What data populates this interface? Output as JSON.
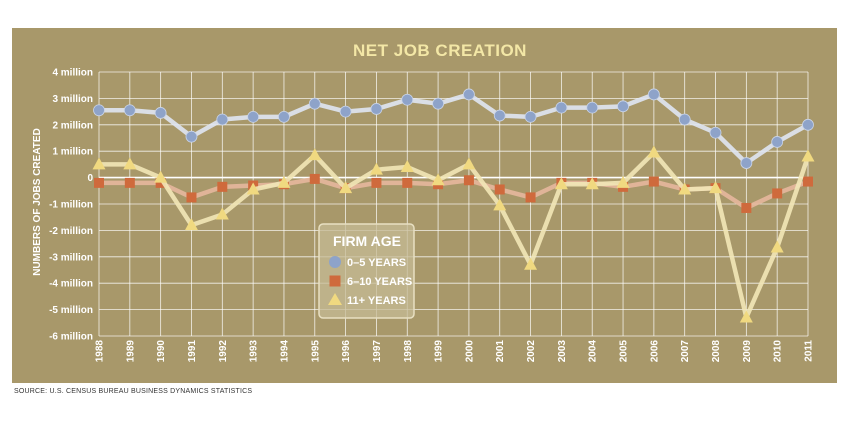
{
  "chart_data": {
    "type": "line",
    "title": "NET JOB CREATION",
    "ylabel": "NUMBERS OF JOBS CREATED",
    "xlabel": "",
    "x": [
      "1988",
      "1989",
      "1990",
      "1991",
      "1992",
      "1993",
      "1994",
      "1995",
      "1996",
      "1997",
      "1998",
      "1999",
      "2000",
      "2001",
      "2002",
      "2003",
      "2004",
      "2005",
      "2006",
      "2007",
      "2008",
      "2009",
      "2010",
      "2011"
    ],
    "y_ticks": [
      {
        "value": 4,
        "label": "4 million"
      },
      {
        "value": 3,
        "label": "3 million"
      },
      {
        "value": 2,
        "label": "2 million"
      },
      {
        "value": 1,
        "label": "1 million"
      },
      {
        "value": 0,
        "label": "0"
      },
      {
        "value": -1,
        "label": "-1 million"
      },
      {
        "value": -2,
        "label": "-2 million"
      },
      {
        "value": -3,
        "label": "-3 million"
      },
      {
        "value": -4,
        "label": "-4 million"
      },
      {
        "value": -5,
        "label": "-5 million"
      },
      {
        "value": -6,
        "label": "-6 million"
      }
    ],
    "ylim": [
      -6,
      4
    ],
    "grid": true,
    "legend_title": "FIRM AGE",
    "legend_position": "center-left",
    "series": [
      {
        "name": "0–5 YEARS",
        "marker": "circle",
        "color": "#8ea3c9",
        "values": [
          2.55,
          2.55,
          2.45,
          1.55,
          2.2,
          2.3,
          2.3,
          2.8,
          2.5,
          2.6,
          2.95,
          2.8,
          3.15,
          2.35,
          2.3,
          2.65,
          2.65,
          2.7,
          3.15,
          2.2,
          1.7,
          0.55,
          1.35,
          2.0
        ]
      },
      {
        "name": "6–10 YEARS",
        "marker": "square",
        "color": "#cf6a3c",
        "values": [
          -0.2,
          -0.2,
          -0.2,
          -0.75,
          -0.35,
          -0.3,
          -0.25,
          -0.05,
          -0.4,
          -0.2,
          -0.2,
          -0.25,
          -0.1,
          -0.45,
          -0.75,
          -0.2,
          -0.2,
          -0.35,
          -0.15,
          -0.45,
          -0.4,
          -1.15,
          -0.6,
          -0.15
        ]
      },
      {
        "name": "11+ YEARS",
        "marker": "triangle",
        "color": "#f0d980",
        "values": [
          0.5,
          0.5,
          0.0,
          -1.8,
          -1.4,
          -0.45,
          -0.2,
          0.85,
          -0.4,
          0.3,
          0.4,
          -0.1,
          0.5,
          -1.05,
          -3.3,
          -0.25,
          -0.25,
          -0.2,
          0.95,
          -0.45,
          -0.4,
          -5.3,
          -2.65,
          0.8
        ]
      }
    ]
  },
  "source_note": "SOURCE: U.S. CENSUS BUREAU BUSINESS DYNAMICS STATISTICS"
}
